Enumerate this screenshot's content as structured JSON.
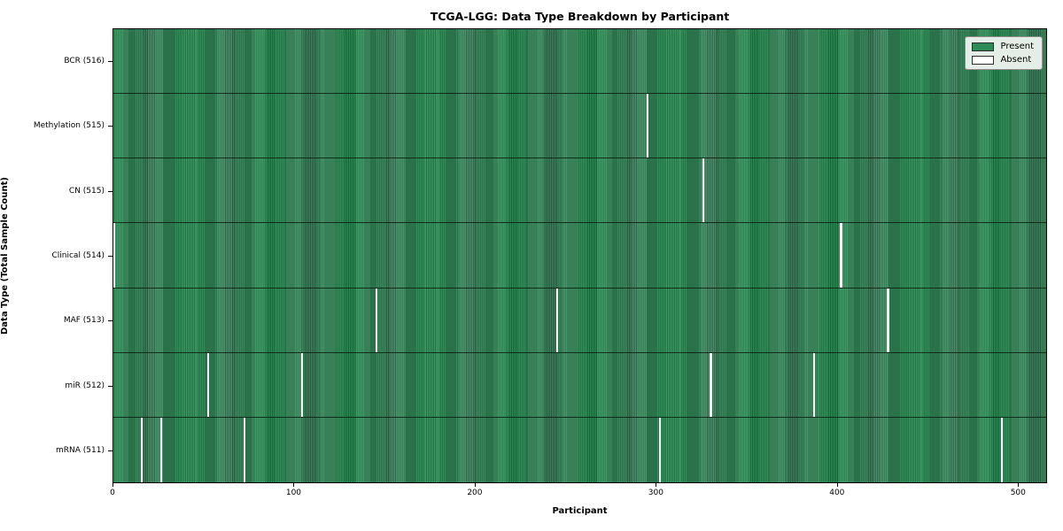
{
  "figure": {
    "title": "TCGA-LGG: Data Type Breakdown by Participant",
    "xlabel": "Participant",
    "ylabel": "Data Type (Total Sample Count)"
  },
  "legend": {
    "items": [
      {
        "label": "Present",
        "color": "#2e8b57"
      },
      {
        "label": "Absent",
        "color": "#ffffff"
      }
    ],
    "position": "upper right"
  },
  "chart_data": {
    "type": "heatmap",
    "title": "TCGA-LGG: Data Type Breakdown by Participant",
    "xlabel": "Participant",
    "ylabel": "Data Type (Total Sample Count)",
    "legend": [
      "Present",
      "Absent"
    ],
    "present_color": "#2e8b57",
    "absent_color": "#ffffff",
    "grid": false,
    "total_participants": 516,
    "xlim": [
      0,
      516
    ],
    "x_ticks": [
      0,
      100,
      200,
      300,
      400,
      500
    ],
    "rows": [
      {
        "label": "BCR",
        "count": 516,
        "display": "BCR (516)",
        "absent_participants": []
      },
      {
        "label": "Methylation",
        "count": 515,
        "display": "Methylation (515)",
        "absent_participants": [
          295
        ]
      },
      {
        "label": "CN",
        "count": 515,
        "display": "CN (515)",
        "absent_participants": [
          326
        ]
      },
      {
        "label": "Clinical",
        "count": 514,
        "display": "Clinical (514)",
        "absent_participants": [
          0,
          402
        ]
      },
      {
        "label": "MAF",
        "count": 513,
        "display": "MAF (513)",
        "absent_participants": [
          145,
          245,
          428
        ]
      },
      {
        "label": "miR",
        "count": 512,
        "display": "miR (512)",
        "absent_participants": [
          52,
          104,
          330,
          387
        ]
      },
      {
        "label": "mRNA",
        "count": 511,
        "display": "mRNA (511)",
        "absent_participants": [
          15,
          26,
          72,
          302,
          491
        ]
      }
    ]
  }
}
